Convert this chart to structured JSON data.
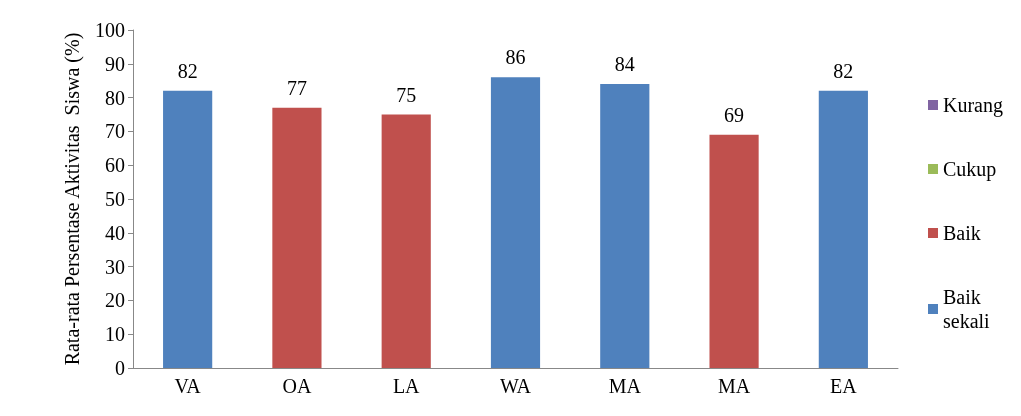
{
  "chart_data": {
    "type": "bar",
    "ylabel": "Rata-rata Persentase Aktivitas  Siswa (%)",
    "categories": [
      "VA",
      "OA",
      "LA",
      "WA",
      "MA",
      "MA",
      "EA"
    ],
    "stacked": true,
    "series": [
      {
        "name": "Kurang",
        "color": "#8064a2",
        "values": [
          null,
          null,
          null,
          null,
          null,
          null,
          null
        ]
      },
      {
        "name": "Cukup",
        "color": "#9bbb59",
        "values": [
          null,
          null,
          null,
          null,
          null,
          null,
          null
        ]
      },
      {
        "name": "Baik",
        "color": "#c0504d",
        "values": [
          null,
          77,
          75,
          null,
          null,
          69,
          null
        ]
      },
      {
        "name": "Baik sekali",
        "color": "#4f81bd",
        "values": [
          82,
          null,
          null,
          86,
          84,
          null,
          82
        ]
      }
    ],
    "ylim": [
      0,
      100
    ],
    "yticks": [
      0,
      10,
      20,
      30,
      40,
      50,
      60,
      70,
      80,
      90,
      100
    ],
    "grid": false,
    "legend": "right",
    "data_labels": true
  }
}
